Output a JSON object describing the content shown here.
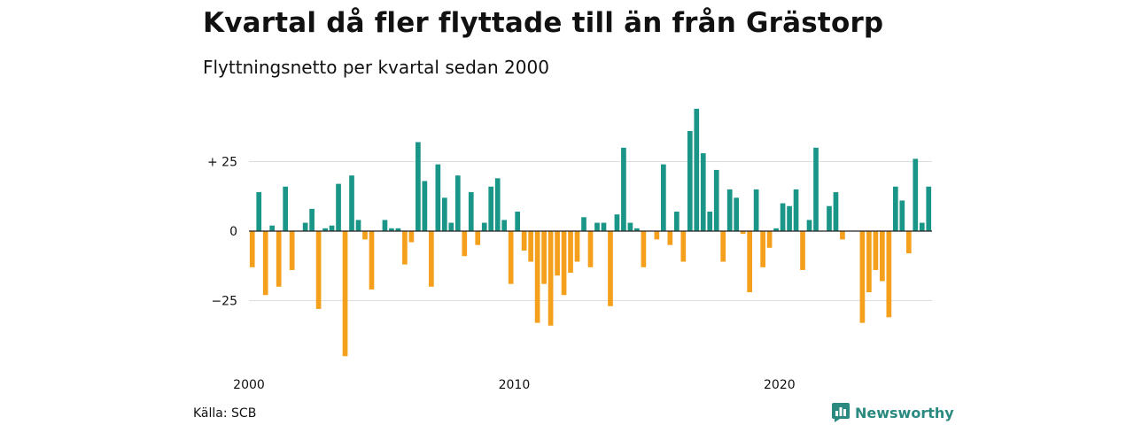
{
  "title": "Kvartal då fler flyttade till än från Grästorp",
  "subtitle": "Flyttningsnetto per kvartal sedan 2000",
  "source": "Källa: SCB",
  "brand": {
    "name": "Newsworthy",
    "icon": "newsworthy-logo-icon"
  },
  "colors": {
    "positive": "#1a9688",
    "negative": "#f5a01c",
    "grid": "#dddddd",
    "zero": "#222222"
  },
  "chart_data": {
    "type": "bar",
    "title": "Kvartal då fler flyttade till än från Grästorp",
    "subtitle": "Flyttningsnetto per kvartal sedan 2000",
    "xlabel": "",
    "ylabel": "",
    "ylim": [
      -45,
      44
    ],
    "yticks": [
      25,
      0,
      -25
    ],
    "ytick_labels": [
      "+ 25",
      "0",
      "−25"
    ],
    "xticks": [
      2000,
      2010,
      2020
    ],
    "grid": true,
    "start": "2000 Q1",
    "values": [
      -13,
      14,
      -23,
      2,
      -20,
      16,
      -14,
      0,
      3,
      8,
      -28,
      1,
      2,
      17,
      -45,
      20,
      4,
      -3,
      -21,
      0,
      4,
      1,
      1,
      -12,
      -4,
      32,
      18,
      -20,
      24,
      12,
      3,
      20,
      -9,
      14,
      -5,
      3,
      16,
      19,
      4,
      -19,
      7,
      -7,
      -11,
      -33,
      -19,
      -34,
      -16,
      -23,
      -15,
      -11,
      5,
      -13,
      3,
      3,
      -27,
      6,
      30,
      3,
      1,
      -13,
      0,
      -3,
      24,
      -5,
      7,
      -11,
      36,
      44,
      28,
      7,
      22,
      -11,
      15,
      12,
      -1,
      -22,
      15,
      -13,
      -6,
      1,
      10,
      9,
      15,
      -14,
      4,
      30,
      0,
      9,
      14,
      -3,
      0,
      0,
      -33,
      -22,
      -14,
      -18,
      -31,
      16,
      11,
      -8,
      26,
      3,
      16
    ]
  }
}
